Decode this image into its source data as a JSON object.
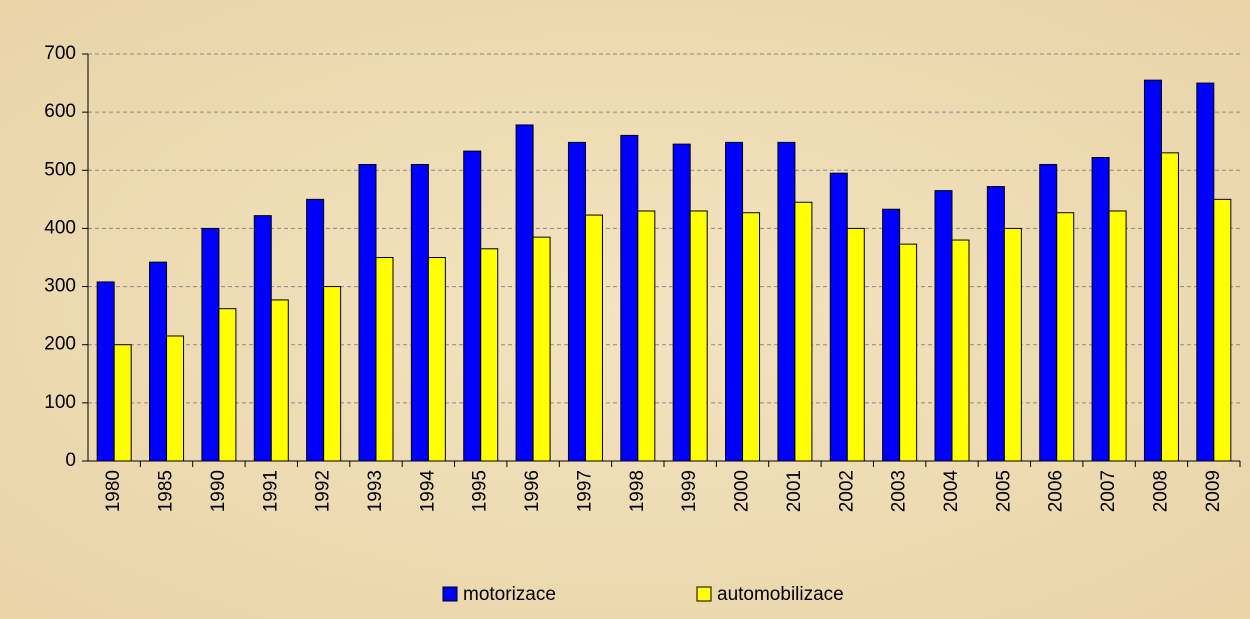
{
  "chart_data": {
    "type": "bar",
    "categories": [
      "1980",
      "1985",
      "1990",
      "1991",
      "1992",
      "1993",
      "1994",
      "1995",
      "1996",
      "1997",
      "1998",
      "1999",
      "2000",
      "2001",
      "2002",
      "2003",
      "2004",
      "2005",
      "2006",
      "2007",
      "2008",
      "2009"
    ],
    "series": [
      {
        "name": "motorizace",
        "color": "#0000ff",
        "values": [
          308,
          342,
          400,
          422,
          450,
          510,
          510,
          533,
          578,
          548,
          560,
          545,
          548,
          548,
          495,
          433,
          465,
          472,
          510,
          522,
          655,
          650
        ]
      },
      {
        "name": "automobilizace",
        "color": "#ffff00",
        "values": [
          200,
          215,
          262,
          277,
          300,
          350,
          350,
          365,
          385,
          423,
          430,
          430,
          427,
          445,
          400,
          373,
          380,
          400,
          427,
          430,
          530,
          450
        ]
      }
    ],
    "ylim": [
      0,
      700
    ],
    "yticks": [
      0,
      100,
      200,
      300,
      400,
      500,
      600,
      700
    ],
    "grid": true,
    "legend": "bottom"
  }
}
